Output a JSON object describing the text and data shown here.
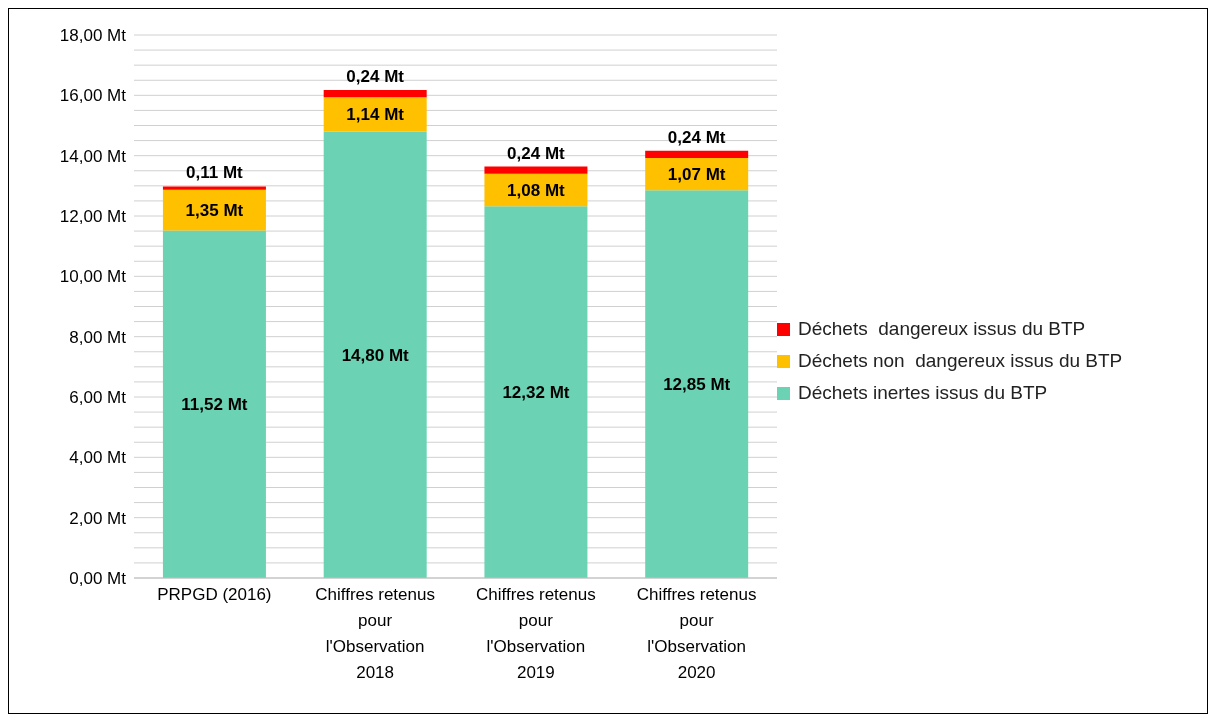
{
  "chart_data": {
    "type": "bar",
    "stacked": true,
    "categories": [
      "PRPGD (2016)",
      "Chiffres retenus pour l'Observation 2018",
      "Chiffres retenus pour l'Observation 2019",
      "Chiffres retenus pour l'Observation 2020"
    ],
    "series": [
      {
        "name": "Déchets inertes issus du BTP",
        "color": "#6bd3b3",
        "values": [
          11.52,
          14.8,
          12.32,
          12.85
        ],
        "value_labels": [
          "11,52 Mt",
          "14,80 Mt",
          "12,32 Mt",
          "12,85 Mt"
        ]
      },
      {
        "name": "Déchets non  dangereux issus du BTP",
        "color": "#ffc000",
        "values": [
          1.35,
          1.14,
          1.08,
          1.07
        ],
        "value_labels": [
          "1,35 Mt",
          "1,14 Mt",
          "1,08 Mt",
          "1,07 Mt"
        ]
      },
      {
        "name": "Déchets  dangereux issus du BTP",
        "color": "#ff0000",
        "values": [
          0.11,
          0.24,
          0.24,
          0.24
        ],
        "value_labels": [
          "0,11 Mt",
          "0,24 Mt",
          "0,24 Mt",
          "0,24 Mt"
        ]
      }
    ],
    "ylim": [
      0,
      18
    ],
    "yticks": [
      {
        "value": 0,
        "label": "0,00 Mt"
      },
      {
        "value": 0.5,
        "label": null
      },
      {
        "value": 1,
        "label": null
      },
      {
        "value": 1.5,
        "label": null
      },
      {
        "value": 2,
        "label": "2,00 Mt"
      },
      {
        "value": 2.5,
        "label": null
      },
      {
        "value": 3,
        "label": null
      },
      {
        "value": 3.5,
        "label": null
      },
      {
        "value": 4,
        "label": "4,00 Mt"
      },
      {
        "value": 4.5,
        "label": null
      },
      {
        "value": 5,
        "label": null
      },
      {
        "value": 5.5,
        "label": null
      },
      {
        "value": 6,
        "label": "6,00 Mt"
      },
      {
        "value": 6.5,
        "label": null
      },
      {
        "value": 7,
        "label": null
      },
      {
        "value": 7.5,
        "label": null
      },
      {
        "value": 8,
        "label": "8,00 Mt"
      },
      {
        "value": 8.5,
        "label": null
      },
      {
        "value": 9,
        "label": null
      },
      {
        "value": 9.5,
        "label": null
      },
      {
        "value": 10,
        "label": "10,00 Mt"
      },
      {
        "value": 10.5,
        "label": null
      },
      {
        "value": 11,
        "label": null
      },
      {
        "value": 11.5,
        "label": null
      },
      {
        "value": 12,
        "label": "12,00 Mt"
      },
      {
        "value": 12.5,
        "label": null
      },
      {
        "value": 13,
        "label": null
      },
      {
        "value": 13.5,
        "label": null
      },
      {
        "value": 14,
        "label": "14,00 Mt"
      },
      {
        "value": 14.5,
        "label": null
      },
      {
        "value": 15,
        "label": null
      },
      {
        "value": 15.5,
        "label": null
      },
      {
        "value": 16,
        "label": "16,00 Mt"
      },
      {
        "value": 16.5,
        "label": null
      },
      {
        "value": 17,
        "label": null
      },
      {
        "value": 17.5,
        "label": null
      },
      {
        "value": 18,
        "label": "18,00 Mt"
      }
    ],
    "grid": "y",
    "legend": "right"
  }
}
